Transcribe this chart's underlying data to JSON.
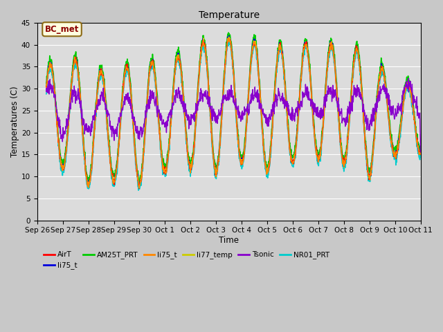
{
  "title": "Temperature",
  "xlabel": "Time",
  "ylabel": "Temperatures (C)",
  "ylim": [
    0,
    45
  ],
  "yticks": [
    0,
    5,
    10,
    15,
    20,
    25,
    30,
    35,
    40,
    45
  ],
  "num_days": 15,
  "annotation_text": "BC_met",
  "series": [
    {
      "label": "AirT",
      "color": "#ff0000",
      "lw": 1.0,
      "zorder": 5
    },
    {
      "label": "li75_t",
      "color": "#0000dd",
      "lw": 1.0,
      "zorder": 4
    },
    {
      "label": "AM25T_PRT",
      "color": "#00cc00",
      "lw": 1.2,
      "zorder": 3
    },
    {
      "label": "li75_t",
      "color": "#ff8800",
      "lw": 1.0,
      "zorder": 6
    },
    {
      "label": "li77_temp",
      "color": "#cccc00",
      "lw": 1.0,
      "zorder": 4
    },
    {
      "label": "Tsonic",
      "color": "#8800cc",
      "lw": 1.0,
      "zorder": 7
    },
    {
      "label": "NR01_PRT",
      "color": "#00cccc",
      "lw": 1.2,
      "zorder": 2
    }
  ],
  "x_tick_labels": [
    "Sep 26",
    "Sep 27",
    "Sep 28",
    "Sep 29",
    "Sep 30",
    "Oct 1",
    "Oct 2",
    "Oct 3",
    "Oct 4",
    "Oct 5",
    "Oct 6",
    "Oct 7",
    "Oct 8",
    "Oct 9",
    "Oct 10",
    "Oct 11"
  ],
  "figsize": [
    6.4,
    4.8
  ],
  "dpi": 100
}
